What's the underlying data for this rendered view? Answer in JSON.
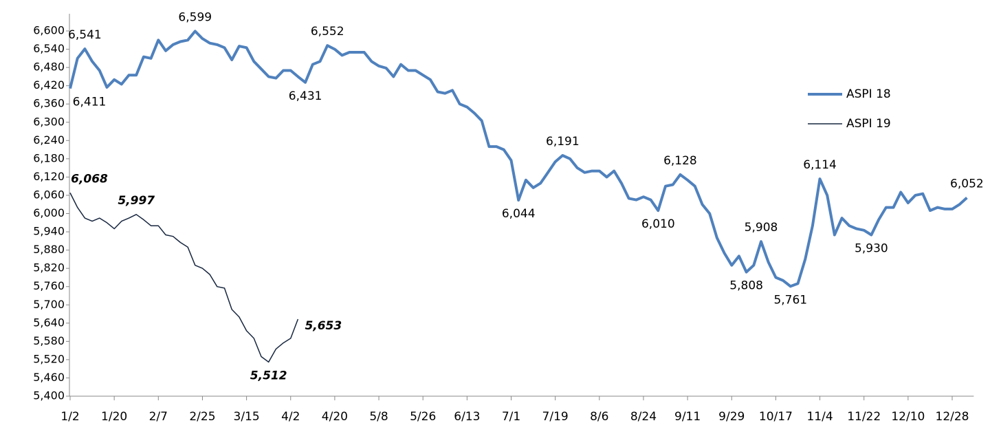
{
  "chart_data": {
    "type": "line",
    "categories": [
      "1/2",
      null,
      null,
      null,
      null,
      null,
      "1/20",
      null,
      null,
      null,
      null,
      null,
      "2/7",
      null,
      null,
      null,
      null,
      null,
      "2/25",
      null,
      null,
      null,
      null,
      null,
      "3/15",
      null,
      null,
      null,
      null,
      null,
      "4/2",
      null,
      null,
      null,
      null,
      null,
      "4/20",
      null,
      null,
      null,
      null,
      null,
      "5/8",
      null,
      null,
      null,
      null,
      null,
      "5/26",
      null,
      null,
      null,
      null,
      null,
      "6/13",
      null,
      null,
      null,
      null,
      null,
      "7/1",
      null,
      null,
      null,
      null,
      null,
      "7/19",
      null,
      null,
      null,
      null,
      null,
      "8/6",
      null,
      null,
      null,
      null,
      null,
      "8/24",
      null,
      null,
      null,
      null,
      null,
      "9/11",
      null,
      null,
      null,
      null,
      null,
      "9/29",
      null,
      null,
      null,
      null,
      null,
      "10/17",
      null,
      null,
      null,
      null,
      null,
      "11/4",
      null,
      null,
      null,
      null,
      null,
      "11/22",
      null,
      null,
      null,
      null,
      null,
      "12/10",
      null,
      null,
      null,
      null,
      null,
      "12/28",
      null,
      null
    ],
    "series": [
      {
        "name": "ASPI 18",
        "color": "#4f81bd",
        "line_width": 4,
        "label_style": "normal",
        "values": [
          6411,
          6510,
          6541,
          6500,
          6470,
          6415,
          6440,
          6425,
          6455,
          6455,
          6515,
          6510,
          6570,
          6535,
          6555,
          6565,
          6570,
          6599,
          6575,
          6560,
          6555,
          6545,
          6505,
          6550,
          6545,
          6500,
          6475,
          6450,
          6445,
          6470,
          6470,
          6450,
          6431,
          6490,
          6500,
          6552,
          6540,
          6520,
          6530,
          6530,
          6530,
          6500,
          6485,
          6478,
          6450,
          6490,
          6470,
          6470,
          6455,
          6440,
          6400,
          6395,
          6405,
          6360,
          6350,
          6330,
          6305,
          6220,
          6220,
          6210,
          6175,
          6044,
          6110,
          6085,
          6100,
          6135,
          6170,
          6191,
          6180,
          6150,
          6135,
          6140,
          6140,
          6120,
          6140,
          6100,
          6050,
          6045,
          6055,
          6045,
          6010,
          6090,
          6095,
          6128,
          6110,
          6090,
          6030,
          6000,
          5920,
          5870,
          5830,
          5860,
          5808,
          5830,
          5908,
          5840,
          5790,
          5780,
          5761,
          5770,
          5850,
          5960,
          6114,
          6060,
          5930,
          5985,
          5960,
          5950,
          5945,
          5930,
          5980,
          6020,
          6020,
          6070,
          6035,
          6060,
          6065,
          6010,
          6020,
          6015,
          6015,
          6030,
          6052
        ],
        "value_labels": [
          "6,411",
          null,
          "6,541",
          null,
          null,
          null,
          null,
          null,
          null,
          null,
          null,
          null,
          null,
          null,
          null,
          null,
          null,
          "6,599",
          null,
          null,
          null,
          null,
          null,
          null,
          null,
          null,
          null,
          null,
          null,
          null,
          null,
          null,
          "6,431",
          null,
          null,
          "6,552",
          null,
          null,
          null,
          null,
          null,
          null,
          null,
          null,
          null,
          null,
          null,
          null,
          null,
          null,
          null,
          null,
          null,
          null,
          null,
          null,
          null,
          null,
          null,
          null,
          null,
          "6,044",
          null,
          null,
          null,
          null,
          null,
          "6,191",
          null,
          null,
          null,
          null,
          null,
          null,
          null,
          null,
          null,
          null,
          null,
          null,
          "6,010",
          null,
          null,
          "6,128",
          null,
          null,
          null,
          null,
          null,
          null,
          null,
          null,
          "5,808",
          null,
          "5,908",
          null,
          null,
          null,
          "5,761",
          null,
          null,
          null,
          "6,114",
          null,
          null,
          null,
          null,
          null,
          null,
          "5,930",
          null,
          null,
          null,
          null,
          null,
          null,
          null,
          null,
          null,
          null,
          null,
          null,
          "6,052"
        ]
      },
      {
        "name": "ASPI 19",
        "color": "#17263f",
        "line_width": 1.5,
        "label_style": "bold-italic",
        "values": [
          6068,
          6020,
          5985,
          5975,
          5985,
          5970,
          5950,
          5975,
          5985,
          5997,
          5980,
          5960,
          5960,
          5930,
          5925,
          5905,
          5890,
          5830,
          5820,
          5800,
          5760,
          5755,
          5685,
          5660,
          5615,
          5590,
          5530,
          5512,
          5555,
          5575,
          5590,
          5653,
          null,
          null,
          null,
          null,
          null,
          null,
          null,
          null,
          null,
          null,
          null,
          null,
          null,
          null,
          null,
          null,
          null,
          null,
          null,
          null,
          null,
          null,
          null,
          null,
          null,
          null,
          null,
          null,
          null,
          null,
          null,
          null,
          null,
          null,
          null,
          null,
          null,
          null,
          null,
          null,
          null,
          null,
          null,
          null,
          null,
          null,
          null,
          null,
          null,
          null,
          null,
          null,
          null,
          null,
          null,
          null,
          null,
          null,
          null,
          null,
          null,
          null,
          null,
          null,
          null,
          null,
          null,
          null,
          null,
          null,
          null,
          null,
          null,
          null,
          null,
          null,
          null,
          null,
          null,
          null,
          null,
          null,
          null,
          null,
          null,
          null,
          null,
          null,
          null,
          null,
          null
        ],
        "value_labels": [
          "6,068",
          null,
          null,
          null,
          null,
          null,
          null,
          null,
          null,
          "5,997",
          null,
          null,
          null,
          null,
          null,
          null,
          null,
          null,
          null,
          null,
          null,
          null,
          null,
          null,
          null,
          null,
          null,
          "5,512",
          null,
          null,
          null,
          "5,653",
          null,
          null,
          null,
          null,
          null,
          null,
          null,
          null,
          null,
          null,
          null,
          null,
          null,
          null,
          null,
          null,
          null,
          null,
          null,
          null,
          null,
          null,
          null,
          null,
          null,
          null,
          null,
          null,
          null,
          null,
          null,
          null,
          null,
          null,
          null,
          null,
          null,
          null,
          null,
          null,
          null,
          null,
          null,
          null,
          null,
          null,
          null,
          null,
          null,
          null,
          null,
          null,
          null,
          null,
          null,
          null,
          null,
          null,
          null,
          null,
          null,
          null,
          null,
          null,
          null,
          null,
          null,
          null,
          null,
          null,
          null,
          null,
          null,
          null,
          null,
          null,
          null,
          null,
          null,
          null,
          null,
          null,
          null,
          null,
          null,
          null,
          null,
          null,
          null,
          null,
          null
        ]
      }
    ],
    "ylim": [
      5400,
      6600
    ],
    "yticks": [
      {
        "value": 5400,
        "label": "5,400"
      },
      {
        "value": 5460,
        "label": "5,460"
      },
      {
        "value": 5520,
        "label": "5,520"
      },
      {
        "value": 5580,
        "label": "5,580"
      },
      {
        "value": 5640,
        "label": "5,640"
      },
      {
        "value": 5700,
        "label": "5,700"
      },
      {
        "value": 5760,
        "label": "5,760"
      },
      {
        "value": 5820,
        "label": "5,820"
      },
      {
        "value": 5880,
        "label": "5,880"
      },
      {
        "value": 5940,
        "label": "5,940"
      },
      {
        "value": 6000,
        "label": "6,000"
      },
      {
        "value": 6060,
        "label": "6,060"
      },
      {
        "value": 6120,
        "label": "6,120"
      },
      {
        "value": 6180,
        "label": "6,180"
      },
      {
        "value": 6240,
        "label": "6,240"
      },
      {
        "value": 6300,
        "label": "6,300"
      },
      {
        "value": 6360,
        "label": "6,360"
      },
      {
        "value": 6420,
        "label": "6,420"
      },
      {
        "value": 6480,
        "label": "6,480"
      },
      {
        "value": 6540,
        "label": "6,540"
      },
      {
        "value": 6600,
        "label": "6,600"
      }
    ],
    "grid": false,
    "legend": "right"
  }
}
